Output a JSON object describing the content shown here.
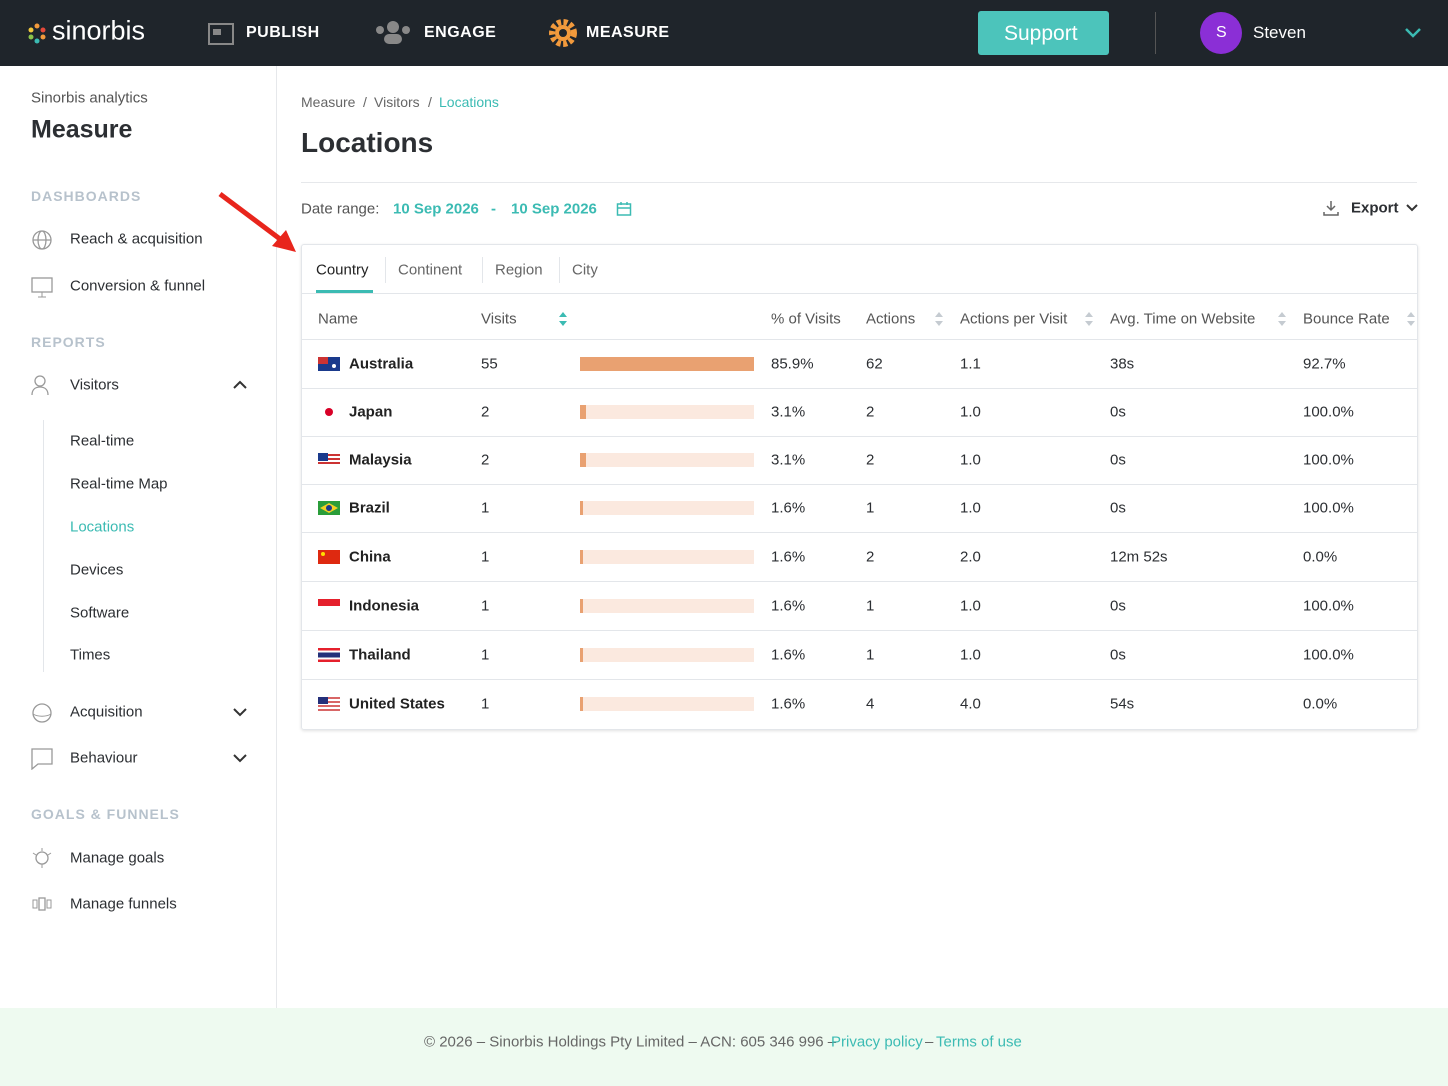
{
  "nav": {
    "logo": "sinorbis",
    "items": [
      "PUBLISH",
      "ENGAGE",
      "MEASURE"
    ],
    "support": "Support",
    "user_initial": "S",
    "user_name": "Steven"
  },
  "sidebar": {
    "subtitle": "Sinorbis analytics",
    "title": "Measure",
    "dashboards": {
      "heading": "DASHBOARDS",
      "items": [
        "Reach & acquisition",
        "Conversion & funnel"
      ]
    },
    "reports": {
      "heading": "REPORTS",
      "visitors": "Visitors",
      "visitor_items": [
        "Real-time",
        "Real-time Map",
        "Locations",
        "Devices",
        "Software",
        "Times"
      ],
      "acquisition": "Acquisition",
      "behaviour": "Behaviour"
    },
    "goals": {
      "heading": "GOALS & FUNNELS",
      "items": [
        "Manage goals",
        "Manage funnels"
      ]
    }
  },
  "breadcrumb": {
    "items": [
      "Measure",
      "Visitors",
      "Locations"
    ],
    "separator": "/"
  },
  "page": {
    "title": "Locations",
    "date_label": "Date range:",
    "date_start": "10 Sep 2026",
    "date_separator": "-",
    "date_end": "10 Sep 2026",
    "export": "Export"
  },
  "tabs": [
    "Country",
    "Continent",
    "Region",
    "City"
  ],
  "table": {
    "columns": [
      "Name",
      "Visits",
      "% of Visits",
      "Actions",
      "Actions per Visit",
      "Avg. Time on Website",
      "Bounce Rate"
    ],
    "rows": [
      {
        "name": "Australia",
        "visits": 55,
        "pct": "85.9%",
        "actions": 62,
        "apv": "1.1",
        "avg_time": "38s",
        "bounce": "92.7%"
      },
      {
        "name": "Japan",
        "visits": 2,
        "pct": "3.1%",
        "actions": 2,
        "apv": "1.0",
        "avg_time": "0s",
        "bounce": "100.0%"
      },
      {
        "name": "Malaysia",
        "visits": 2,
        "pct": "3.1%",
        "actions": 2,
        "apv": "1.0",
        "avg_time": "0s",
        "bounce": "100.0%"
      },
      {
        "name": "Brazil",
        "visits": 1,
        "pct": "1.6%",
        "actions": 1,
        "apv": "1.0",
        "avg_time": "0s",
        "bounce": "100.0%"
      },
      {
        "name": "China",
        "visits": 1,
        "pct": "1.6%",
        "actions": 2,
        "apv": "2.0",
        "avg_time": "12m 52s",
        "bounce": "0.0%"
      },
      {
        "name": "Indonesia",
        "visits": 1,
        "pct": "1.6%",
        "actions": 1,
        "apv": "1.0",
        "avg_time": "0s",
        "bounce": "100.0%"
      },
      {
        "name": "Thailand",
        "visits": 1,
        "pct": "1.6%",
        "actions": 1,
        "apv": "1.0",
        "avg_time": "0s",
        "bounce": "100.0%"
      },
      {
        "name": "United States",
        "visits": 1,
        "pct": "1.6%",
        "actions": 4,
        "apv": "4.0",
        "avg_time": "54s",
        "bounce": "0.0%"
      }
    ]
  },
  "footer": {
    "text": "© 2026 – Sinorbis Holdings Pty Limited – ACN: 605 346 996 –",
    "privacy": "Privacy policy",
    "separator": "–",
    "terms": "Terms of use"
  }
}
